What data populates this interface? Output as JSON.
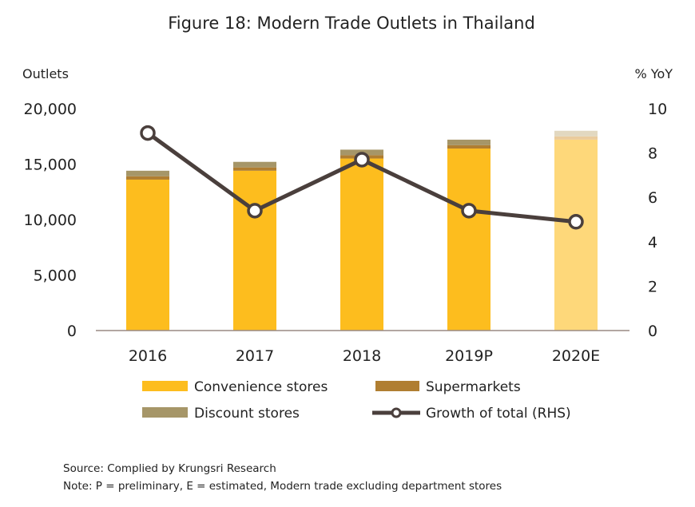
{
  "chart_data": {
    "type": "bar",
    "stacked": true,
    "title": "Figure 18: Modern Trade Outlets in Thailand",
    "ylabel_left": "Outlets",
    "ylabel_right": "% YoY",
    "categories": [
      "2016",
      "2017",
      "2018",
      "2019P",
      "2020E"
    ],
    "ylim_left": [
      0,
      20000
    ],
    "yticks_left": [
      "0",
      "5,000",
      "10,000",
      "15,000",
      "20,000"
    ],
    "ylim_right": [
      0,
      10
    ],
    "yticks_right": [
      "0",
      "2",
      "4",
      "6",
      "8",
      "10"
    ],
    "series": [
      {
        "name": "Convenience stores",
        "kind": "bar",
        "values": [
          13600,
          14400,
          15500,
          16400,
          17200
        ],
        "color": "#FDBD1E",
        "estimate_color": "#FED87A"
      },
      {
        "name": "Supermarkets",
        "kind": "bar",
        "values": [
          300,
          300,
          300,
          300,
          300
        ],
        "color": "#B07E31",
        "estimate_color": "#EACB9C"
      },
      {
        "name": "Discount stores",
        "kind": "bar",
        "values": [
          500,
          500,
          500,
          500,
          500
        ],
        "color": "#A69668",
        "estimate_color": "#E2D8C0"
      },
      {
        "name": "Growth of total (RHS)",
        "kind": "line",
        "axis": "right",
        "values": [
          8.9,
          5.4,
          7.7,
          5.4,
          4.9
        ],
        "color": "#4A3F3C"
      }
    ],
    "legend_position": "bottom",
    "grid": false
  },
  "footer": {
    "source": "Source: Complied by Krungsri Research",
    "note": "Note: P = preliminary, E = estimated, Modern trade excluding department stores"
  }
}
